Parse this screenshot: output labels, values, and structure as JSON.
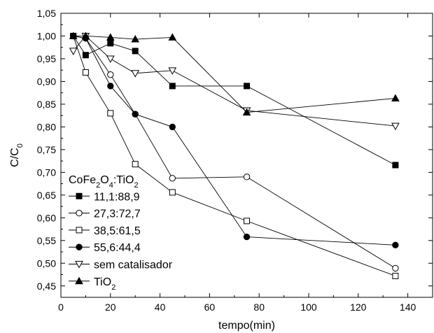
{
  "chart_data": {
    "type": "line",
    "title": "",
    "xlabel": "tempo(min)",
    "ylabel": {
      "base": "C/C",
      "sub": "0"
    },
    "xlim": [
      0,
      150
    ],
    "ylim": [
      0.425,
      1.05
    ],
    "xticks": [
      0,
      20,
      40,
      60,
      80,
      100,
      120,
      140
    ],
    "yticks": [
      0.45,
      0.5,
      0.55,
      0.6,
      0.65,
      0.7,
      0.75,
      0.8,
      0.85,
      0.9,
      0.95,
      1.0,
      1.05
    ],
    "ytick_labels": [
      "0,45",
      "0,50",
      "0,55",
      "0,60",
      "0,65",
      "0,70",
      "0,75",
      "0,80",
      "0,85",
      "0,90",
      "0,95",
      "1,00",
      "1,05"
    ],
    "grid": false,
    "legend_position": "bottom-left",
    "legend_title": {
      "parts": [
        [
          "CoFe",
          ""
        ],
        [
          "2",
          "sub"
        ],
        [
          "O",
          ""
        ],
        [
          "4",
          "sub"
        ],
        [
          ":TiO",
          ""
        ],
        [
          "2",
          "sub"
        ]
      ]
    },
    "series": [
      {
        "name": "11,1:88,9",
        "marker": "square-filled",
        "x": [
          5,
          10,
          20,
          30,
          45,
          75,
          135
        ],
        "y": [
          1.0,
          0.958,
          0.984,
          0.967,
          0.89,
          0.89,
          0.716
        ]
      },
      {
        "name": "27,3:72,7",
        "marker": "circle-open",
        "x": [
          5,
          10,
          20,
          30,
          45,
          75,
          135
        ],
        "y": [
          1.0,
          0.995,
          0.915,
          0.828,
          0.687,
          0.69,
          0.489
        ]
      },
      {
        "name": "38,5:61,5",
        "marker": "square-open",
        "x": [
          5,
          10,
          20,
          30,
          45,
          75,
          135
        ],
        "y": [
          1.0,
          0.92,
          0.83,
          0.718,
          0.656,
          0.593,
          0.472
        ]
      },
      {
        "name": "55,6:44,4",
        "marker": "circle-filled",
        "x": [
          5,
          10,
          20,
          30,
          45,
          75,
          135
        ],
        "y": [
          1.0,
          0.995,
          0.89,
          0.828,
          0.8,
          0.558,
          0.54
        ]
      },
      {
        "name": "sem catalisador",
        "marker": "triangle-down-open",
        "x": [
          5,
          10,
          20,
          30,
          45,
          75,
          135
        ],
        "y": [
          0.967,
          1.0,
          0.95,
          0.918,
          0.924,
          0.836,
          0.802
        ]
      },
      {
        "name": "TiO2",
        "label_parts": [
          [
            "TiO",
            ""
          ],
          [
            "2",
            "sub"
          ]
        ],
        "marker": "triangle-up-filled",
        "x": [
          5,
          10,
          20,
          30,
          45,
          75,
          135
        ],
        "y": [
          1.0,
          1.0,
          0.997,
          0.993,
          0.997,
          0.832,
          0.863
        ]
      }
    ]
  }
}
